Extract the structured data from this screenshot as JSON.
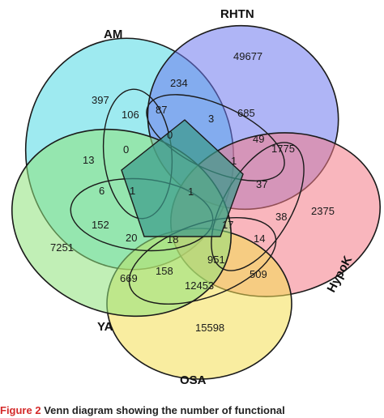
{
  "diagram": {
    "sets": [
      {
        "name": "AM",
        "color": "#4fd8e4"
      },
      {
        "name": "RHTN",
        "color": "#6e78ee"
      },
      {
        "name": "HypoK",
        "color": "#f47a86"
      },
      {
        "name": "OSA",
        "color": "#f4de52"
      },
      {
        "name": "YA",
        "color": "#8ee27a"
      }
    ],
    "regions": [
      {
        "id": "am-only",
        "value": "397"
      },
      {
        "id": "rhtn-only",
        "value": "49677"
      },
      {
        "id": "hypok-only",
        "value": "2375"
      },
      {
        "id": "osa-only",
        "value": "15598"
      },
      {
        "id": "ya-only",
        "value": "7251"
      },
      {
        "id": "am-rhtn",
        "value": "234"
      },
      {
        "id": "am-lobe-106",
        "value": "106"
      },
      {
        "id": "region-87",
        "value": "87"
      },
      {
        "id": "region-3",
        "value": "3"
      },
      {
        "id": "region-685",
        "value": "685"
      },
      {
        "id": "region-0a",
        "value": "0"
      },
      {
        "id": "region-0b",
        "value": "0"
      },
      {
        "id": "region-13",
        "value": "13"
      },
      {
        "id": "region-49",
        "value": "49"
      },
      {
        "id": "region-1775",
        "value": "1775"
      },
      {
        "id": "region-1a",
        "value": "1"
      },
      {
        "id": "region-6",
        "value": "6"
      },
      {
        "id": "region-1b",
        "value": "1"
      },
      {
        "id": "region-1-center",
        "value": "1"
      },
      {
        "id": "region-37",
        "value": "37"
      },
      {
        "id": "region-38",
        "value": "38"
      },
      {
        "id": "region-152",
        "value": "152"
      },
      {
        "id": "region-20",
        "value": "20"
      },
      {
        "id": "region-18",
        "value": "18"
      },
      {
        "id": "region-17",
        "value": "17"
      },
      {
        "id": "region-14",
        "value": "14"
      },
      {
        "id": "region-951",
        "value": "951"
      },
      {
        "id": "region-669",
        "value": "669"
      },
      {
        "id": "region-158",
        "value": "158"
      },
      {
        "id": "region-509",
        "value": "509"
      },
      {
        "id": "region-12453",
        "value": "12453"
      }
    ]
  },
  "caption": {
    "figure_number": "Figure 2",
    "text": "Venn diagram showing the number of functional"
  }
}
